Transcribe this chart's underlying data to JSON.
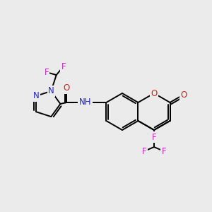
{
  "background_color": "#ebebeb",
  "colors": {
    "C": "#000000",
    "N": "#2222cc",
    "O": "#cc2222",
    "F": "#cc22cc",
    "bg": "#ebebeb"
  },
  "bond_lw": 1.4,
  "font_size": 8.5
}
